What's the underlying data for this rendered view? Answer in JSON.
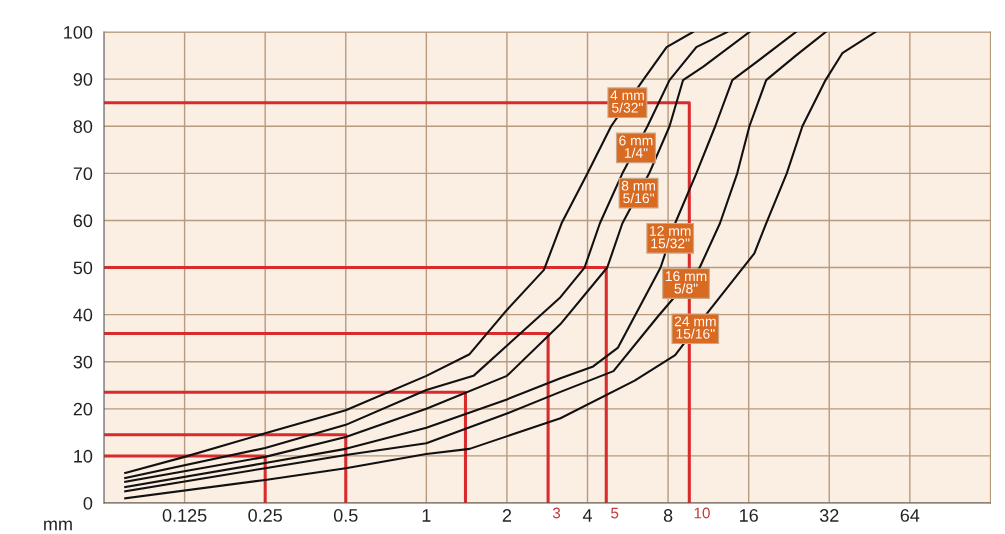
{
  "chart_data": {
    "type": "line",
    "xlabel": "mm",
    "log": "x",
    "grid": true,
    "legend": false,
    "marker": "none",
    "line_style": "solid",
    "xlim": [
      0.0625,
      128
    ],
    "ylim": [
      0,
      100
    ],
    "xticks": [
      0.125,
      0.25,
      0.5,
      1,
      2,
      4,
      8,
      16,
      32,
      64
    ],
    "yticks": [
      0,
      10,
      20,
      30,
      40,
      50,
      60,
      70,
      80,
      90,
      100
    ],
    "series": [
      {
        "name": "4 mm\n5/32\"",
        "color": "#111111",
        "x": [
          0.075,
          0.125,
          0.25,
          0.5,
          1,
          1.45,
          2,
          2.75,
          3.2,
          4,
          4.9,
          6.45,
          7.9,
          9.9
        ],
        "values": [
          6.4,
          9.8,
          14.8,
          19.7,
          27,
          31.6,
          41,
          49.5,
          59.4,
          70,
          80,
          89.8,
          96.8,
          100
        ]
      },
      {
        "name": "6 mm\n1/4\"",
        "color": "#111111",
        "x": [
          0.075,
          0.25,
          0.5,
          1,
          1.5,
          3.17,
          3.9,
          4.45,
          5.4,
          6.7,
          8.1,
          10.2,
          13.3
        ],
        "values": [
          5.3,
          11.7,
          16.6,
          24,
          27,
          43.7,
          50,
          59.4,
          70,
          80,
          89.8,
          96.8,
          100
        ]
      },
      {
        "name": "8 mm\n5/16\"",
        "color": "#111111",
        "x": [
          0.075,
          0.25,
          0.5,
          1,
          2,
          3.17,
          4.74,
          5.4,
          6.8,
          8.1,
          9.1,
          10.8,
          16.1
        ],
        "values": [
          4.5,
          9.8,
          14,
          20,
          27,
          38,
          50,
          59.4,
          70,
          80,
          89.8,
          92.6,
          100
        ]
      },
      {
        "name": "12 mm\n15/32\"",
        "color": "#111111",
        "x": [
          0.075,
          0.25,
          0.5,
          1,
          2,
          3.17,
          4.2,
          5.2,
          7.5,
          8.5,
          10.2,
          12,
          13.9,
          17,
          24
        ],
        "values": [
          3.4,
          8.5,
          11.5,
          16,
          22,
          26.5,
          29,
          33,
          50,
          59.4,
          70,
          80,
          89.8,
          93.5,
          100
        ]
      },
      {
        "name": "16 mm\n5/8\"",
        "color": "#111111",
        "x": [
          0.075,
          0.25,
          0.5,
          1,
          2,
          3.17,
          5,
          7.3,
          10.5,
          12.5,
          14.5,
          16.1,
          18.6,
          24,
          31
        ],
        "values": [
          2.5,
          7.4,
          10.2,
          12.7,
          19,
          23.6,
          28,
          39.5,
          50,
          59.4,
          70,
          80,
          89.8,
          95,
          100
        ]
      },
      {
        "name": "24 mm\n15/16\"",
        "color": "#111111",
        "x": [
          0.075,
          0.25,
          0.5,
          1,
          1.45,
          3.17,
          6,
          8.5,
          11.2,
          16.8,
          18.6,
          22.2,
          25.4,
          31,
          35.8,
          47.6
        ],
        "values": [
          1,
          4.9,
          7.4,
          10.4,
          11.5,
          18,
          26,
          31.4,
          40.3,
          53,
          59.4,
          70,
          80,
          89.8,
          95.5,
          100
        ]
      },
      {
        "color": "#d92b2b",
        "x": [
          0.0625,
          0.25,
          0.25
        ],
        "values": [
          10,
          10,
          0
        ]
      },
      {
        "color": "#d92b2b",
        "x": [
          0.0625,
          0.5,
          0.5
        ],
        "values": [
          14.5,
          14.5,
          0
        ]
      },
      {
        "color": "#d92b2b",
        "x": [
          0.0625,
          1.4,
          1.4
        ],
        "values": [
          23.5,
          23.5,
          0
        ]
      },
      {
        "color": "#d92b2b",
        "x": [
          0.0625,
          2.85,
          2.85
        ],
        "values": [
          36,
          36,
          0
        ]
      },
      {
        "color": "#d92b2b",
        "x": [
          0.0625,
          4.7,
          4.7
        ],
        "values": [
          50,
          50,
          0
        ]
      },
      {
        "color": "#d92b2b",
        "x": [
          0.0625,
          9.6,
          9.6
        ],
        "values": [
          85,
          85,
          0
        ]
      }
    ],
    "annotations": [
      {
        "text": "3",
        "x": 2.85,
        "y": 0
      },
      {
        "text": "5",
        "x": 4.7,
        "y": 0
      },
      {
        "text": "10",
        "x": 9.6,
        "y": 0
      }
    ]
  }
}
